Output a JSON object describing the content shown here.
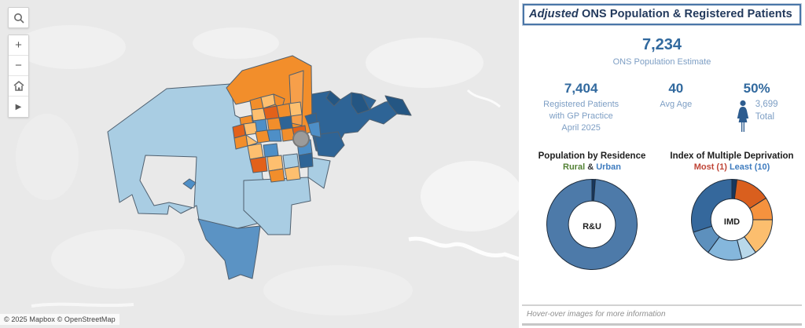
{
  "map": {
    "attribution": "© 2025 Mapbox © OpenStreetMap",
    "controls": {
      "zoom_in": "+",
      "zoom_out": "−",
      "pan": "▶"
    }
  },
  "panel": {
    "title": {
      "italic": "Adjusted",
      "rest": " ONS Population & Registered Patients"
    },
    "ons_population": {
      "value": "7,234",
      "label": "ONS Population Estimate"
    },
    "stats": [
      {
        "value": "7,404",
        "label_lines": [
          "Registered Patients",
          "with GP Practice",
          "April 2025"
        ]
      },
      {
        "value": "40",
        "label_lines": [
          "Avg Age"
        ]
      },
      {
        "value": "50%",
        "count": "3,699",
        "count_label": "Total"
      }
    ],
    "footer_note": "Hover-over images for more information"
  },
  "chart_data": [
    {
      "type": "pie",
      "title": "Population by Residence",
      "subtitle_parts": [
        {
          "text": "Rural",
          "color": "#538135"
        },
        {
          "text": " & ",
          "color": "#333333"
        },
        {
          "text": "Urban",
          "color": "#3f7cbf"
        }
      ],
      "center_label": "R&U",
      "donut": true,
      "hole_ratio": 0.52,
      "legend_position": "none",
      "series": [
        {
          "name": "Rural",
          "value": 1.2,
          "color": "#17375e"
        },
        {
          "name": "Urban",
          "value": 98.8,
          "color": "#4d7aa9"
        }
      ]
    },
    {
      "type": "pie",
      "title": "Index of Multiple Deprivation",
      "subtitle_parts": [
        {
          "text": "Most (1)",
          "color": "#bf4436"
        },
        {
          "text": " ",
          "color": "#333333"
        },
        {
          "text": "Least (10)",
          "color": "#3f7cbf"
        }
      ],
      "center_label": "IMD",
      "donut": true,
      "hole_ratio": 0.52,
      "legend_position": "none",
      "series": [
        {
          "name": "IMD 1",
          "value": 2,
          "color": "#17375e"
        },
        {
          "name": "IMD 2",
          "value": 14,
          "color": "#d95f1e"
        },
        {
          "name": "IMD 3",
          "value": 9,
          "color": "#f5923e"
        },
        {
          "name": "IMD 4",
          "value": 15,
          "color": "#fcbe6e"
        },
        {
          "name": "IMD 5",
          "value": 6,
          "color": "#b9d8ea"
        },
        {
          "name": "IMD 6",
          "value": 14,
          "color": "#85b7dc"
        },
        {
          "name": "IMD 7",
          "value": 10,
          "color": "#5d90bd"
        },
        {
          "name": "IMD 8",
          "value": 30,
          "color": "#35689c"
        }
      ]
    }
  ]
}
